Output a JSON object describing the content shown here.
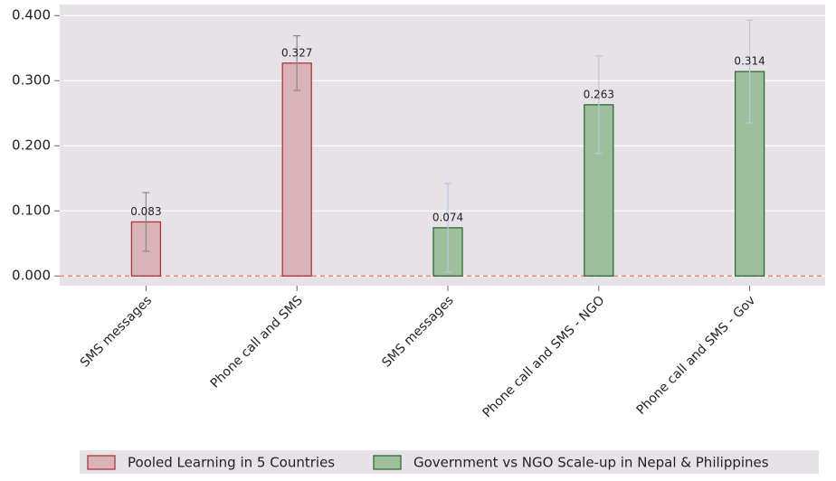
{
  "chart_data": {
    "type": "bar",
    "categories": [
      "SMS messages",
      "Phone call and SMS",
      "SMS messages",
      "Phone call and SMS - NGO",
      "Phone call and SMS - Gov"
    ],
    "series": [
      {
        "name": "Pooled Learning in 5 Countries",
        "color": "#d9b3b8",
        "edge_color": "#a83a3a",
        "error_color": "#8a8a8a",
        "values": [
          0.083,
          0.327,
          null,
          null,
          null
        ],
        "errors": [
          0.045,
          0.042,
          null,
          null,
          null
        ]
      },
      {
        "name": "Government vs NGO Scale-up in Nepal & Philippines",
        "color": "#9ebf9b",
        "edge_color": "#2f6b35",
        "error_color": "#b7c9e6",
        "values": [
          null,
          null,
          0.074,
          0.263,
          0.314
        ],
        "errors": [
          null,
          null,
          0.068,
          0.075,
          0.079
        ]
      }
    ],
    "ylim": [
      -0.015,
      0.417
    ],
    "yticks": [
      {
        "value": 0,
        "label": "0.000"
      },
      {
        "value": 0.1,
        "label": "0.100"
      },
      {
        "value": 0.2,
        "label": "0.200"
      },
      {
        "value": 0.3,
        "label": "0.300"
      },
      {
        "value": 0.4,
        "label": "0.400"
      }
    ],
    "grid": true,
    "reference_line": {
      "value": 0,
      "color": "#f08a80"
    },
    "legend": "bottom"
  }
}
